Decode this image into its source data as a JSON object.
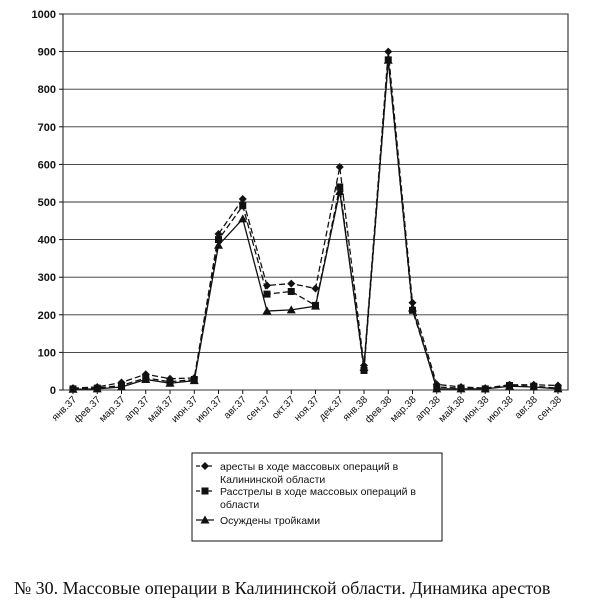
{
  "caption": "№ 30. Массовые операции в Калининской области. Динамика арестов",
  "chart_data": {
    "type": "line",
    "categories": [
      "янв.37",
      "фев.37",
      "мар.37",
      "апр.37",
      "май.37",
      "июн.37",
      "июл.37",
      "авг.37",
      "сен.37",
      "окт.37",
      "ноя.37",
      "дек.37",
      "янв.38",
      "фев.38",
      "мар.38",
      "апр.38",
      "май.38",
      "июн.38",
      "июл.38",
      "авг.38",
      "сен.38"
    ],
    "ylim": [
      0,
      1000
    ],
    "yticks": [
      0,
      100,
      200,
      300,
      400,
      500,
      600,
      700,
      800,
      900,
      1000
    ],
    "grid": true,
    "series": [
      {
        "name": "аресты в ходе массовых операций в Калининской области",
        "marker": "diamond",
        "dash": "dashed",
        "values": [
          5,
          8,
          20,
          42,
          30,
          32,
          415,
          508,
          278,
          283,
          270,
          593,
          65,
          900,
          232,
          15,
          8,
          5,
          14,
          14,
          12
        ]
      },
      {
        "name": "Расстрелы в ходе массовых операций в области",
        "marker": "square",
        "dash": "dashed",
        "values": [
          3,
          5,
          12,
          32,
          22,
          28,
          400,
          490,
          255,
          262,
          225,
          540,
          52,
          878,
          212,
          8,
          5,
          3,
          12,
          10,
          5
        ]
      },
      {
        "name": "Осуждены тройками",
        "marker": "triangle",
        "dash": "solid",
        "values": [
          2,
          3,
          8,
          28,
          18,
          25,
          385,
          455,
          210,
          213,
          223,
          528,
          60,
          877,
          218,
          3,
          3,
          3,
          10,
          8,
          3
        ]
      }
    ],
    "legend_lines": [
      [
        "аресты в ходе массовых операций в",
        "Калининской области"
      ],
      [
        "Расстрелы в ходе массовых операций в",
        "области"
      ],
      [
        "Осуждены тройками"
      ]
    ]
  }
}
